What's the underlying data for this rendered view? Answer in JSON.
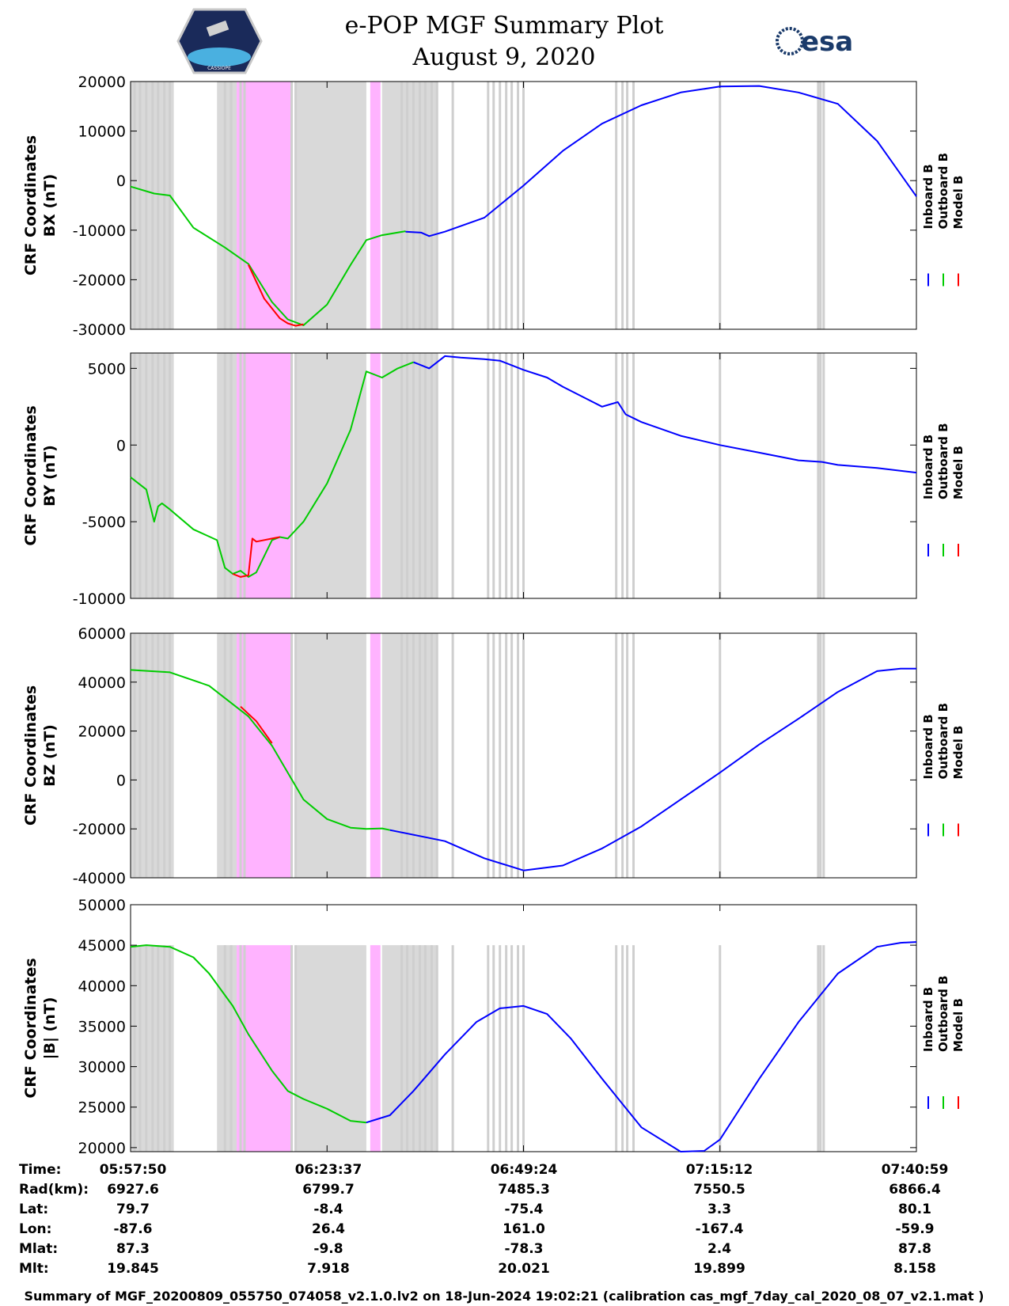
{
  "header": {
    "title": "e-POP MGF Summary Plot",
    "date": "August 9, 2020",
    "left_logo_caption": "CASSIOPE",
    "right_logo_text": "esa"
  },
  "colors": {
    "inboard": "#0000ff",
    "outboard": "#00cc00",
    "model": "#ff0000",
    "gap_shade": "#d9d9d9",
    "magenta_shade": "#ffb3ff"
  },
  "legend": [
    "Inboard B",
    "Outboard B",
    "Model B"
  ],
  "chart_data": [
    {
      "type": "line",
      "ylabel": [
        "CRF Coordinates",
        "BX (nT)"
      ],
      "ylim": [
        -30000,
        20000
      ],
      "yticks": [
        20000,
        10000,
        0,
        -10000,
        -20000,
        -30000
      ],
      "ytick_labels": [
        "20000",
        "10000",
        "0",
        "-10000",
        "-20000",
        "-30000"
      ],
      "series": [
        {
          "name": "Outboard B",
          "x": [
            0,
            0.03,
            0.05,
            0.08,
            0.12,
            0.15,
            0.18,
            0.2,
            0.22,
            0.25,
            0.28,
            0.3,
            0.32,
            0.35
          ],
          "y": [
            -1200,
            -2600,
            -3000,
            -9500,
            -13500,
            -16800,
            -24500,
            -28000,
            -29200,
            -25000,
            -17000,
            -12000,
            -11000,
            -10200
          ]
        },
        {
          "name": "Model B",
          "x": [
            0.15,
            0.17,
            0.19,
            0.2,
            0.21,
            0.22
          ],
          "y": [
            -17000,
            -23800,
            -27800,
            -28800,
            -29300,
            -29000
          ]
        },
        {
          "name": "Inboard B",
          "x": [
            0.35,
            0.37,
            0.38,
            0.4,
            0.45,
            0.5,
            0.55,
            0.6,
            0.65,
            0.7,
            0.75,
            0.8,
            0.85,
            0.9,
            0.95,
            1.0
          ],
          "y": [
            -10300,
            -10500,
            -11200,
            -10300,
            -7500,
            -1000,
            6000,
            11500,
            15200,
            17800,
            19000,
            19100,
            17800,
            15500,
            8000,
            -3200
          ]
        }
      ]
    },
    {
      "type": "line",
      "ylabel": [
        "CRF Coordinates",
        "BY (nT)"
      ],
      "ylim": [
        -10000,
        6000
      ],
      "yticks": [
        5000,
        0,
        -5000,
        -10000
      ],
      "ytick_labels": [
        "5000",
        "0",
        "-5000",
        "-10000"
      ],
      "series": [
        {
          "name": "Outboard B",
          "x": [
            0,
            0.02,
            0.03,
            0.035,
            0.04,
            0.05,
            0.08,
            0.11,
            0.12,
            0.13,
            0.14,
            0.15,
            0.16,
            0.18,
            0.19,
            0.2,
            0.22,
            0.25,
            0.28,
            0.3,
            0.32,
            0.34,
            0.36
          ],
          "y": [
            -2100,
            -2900,
            -5000,
            -4000,
            -3800,
            -4200,
            -5500,
            -6200,
            -8000,
            -8400,
            -8200,
            -8600,
            -8300,
            -6200,
            -6000,
            -6100,
            -5000,
            -2500,
            1000,
            4800,
            4400,
            5000,
            5400
          ]
        },
        {
          "name": "Model B",
          "x": [
            0.13,
            0.14,
            0.15,
            0.155,
            0.16,
            0.18,
            0.19
          ],
          "y": [
            -8400,
            -8600,
            -8500,
            -6100,
            -6300,
            -6100,
            -6000
          ]
        },
        {
          "name": "Inboard B",
          "x": [
            0.36,
            0.38,
            0.4,
            0.42,
            0.45,
            0.47,
            0.5,
            0.53,
            0.55,
            0.6,
            0.62,
            0.63,
            0.65,
            0.7,
            0.75,
            0.8,
            0.85,
            0.88,
            0.9,
            0.95,
            1.0
          ],
          "y": [
            5400,
            5000,
            5800,
            5700,
            5600,
            5500,
            4900,
            4400,
            3800,
            2500,
            2800,
            2000,
            1500,
            600,
            0,
            -500,
            -1000,
            -1100,
            -1300,
            -1500,
            -1800
          ]
        }
      ]
    },
    {
      "type": "line",
      "ylabel": [
        "CRF Coordinates",
        "BZ (nT)"
      ],
      "ylim": [
        -40000,
        60000
      ],
      "yticks": [
        60000,
        40000,
        20000,
        0,
        -20000,
        -40000
      ],
      "ytick_labels": [
        "60000",
        "40000",
        "20000",
        "0",
        "-20000",
        "-40000"
      ],
      "series": [
        {
          "name": "Outboard B",
          "x": [
            0,
            0.05,
            0.1,
            0.15,
            0.18,
            0.2,
            0.22,
            0.25,
            0.28,
            0.3,
            0.32,
            0.33
          ],
          "y": [
            45000,
            44000,
            38500,
            26000,
            14000,
            3000,
            -8000,
            -16000,
            -19500,
            -20000,
            -19800,
            -20500
          ]
        },
        {
          "name": "Model B",
          "x": [
            0.14,
            0.16,
            0.18
          ],
          "y": [
            30000,
            24000,
            15000
          ]
        },
        {
          "name": "Inboard B",
          "x": [
            0.33,
            0.4,
            0.45,
            0.5,
            0.55,
            0.6,
            0.65,
            0.7,
            0.75,
            0.8,
            0.85,
            0.9,
            0.95,
            0.98,
            1.0
          ],
          "y": [
            -20500,
            -25000,
            -32000,
            -37000,
            -35000,
            -28000,
            -19000,
            -8000,
            3000,
            14500,
            25000,
            36000,
            44500,
            45500,
            45500
          ]
        }
      ]
    },
    {
      "type": "line",
      "ylabel": [
        "CRF Coordinates",
        "|B| (nT)"
      ],
      "ylim": [
        19500,
        50000
      ],
      "yticks": [
        50000,
        45000,
        40000,
        35000,
        30000,
        25000,
        20000
      ],
      "ytick_labels": [
        "50000",
        "45000",
        "40000",
        "35000",
        "30000",
        "25000",
        "20000"
      ],
      "series": [
        {
          "name": "Outboard B",
          "x": [
            0,
            0.02,
            0.05,
            0.08,
            0.1,
            0.13,
            0.15,
            0.18,
            0.2,
            0.22,
            0.25,
            0.28,
            0.3
          ],
          "y": [
            44800,
            45000,
            44800,
            43500,
            41500,
            37500,
            34000,
            29500,
            27000,
            26000,
            24800,
            23300,
            23100
          ]
        },
        {
          "name": "Inboard B",
          "x": [
            0.3,
            0.33,
            0.36,
            0.4,
            0.44,
            0.47,
            0.5,
            0.53,
            0.56,
            0.6,
            0.65,
            0.7,
            0.73,
            0.75,
            0.77,
            0.8,
            0.85,
            0.9,
            0.95,
            0.98,
            1.0
          ],
          "y": [
            23100,
            24000,
            27000,
            31500,
            35500,
            37200,
            37500,
            36500,
            33500,
            28500,
            22500,
            19500,
            19600,
            21000,
            24000,
            28500,
            35500,
            41500,
            44800,
            45300,
            45400
          ]
        }
      ]
    }
  ],
  "shading": {
    "gray_bands": [
      [
        0.0,
        0.055
      ],
      [
        0.11,
        0.135
      ],
      [
        0.21,
        0.3
      ],
      [
        0.32,
        0.39
      ]
    ],
    "magenta_bands": [
      [
        0.135,
        0.205
      ],
      [
        0.305,
        0.318
      ]
    ],
    "gray_lines": [
      0.005,
      0.012,
      0.02,
      0.028,
      0.035,
      0.043,
      0.05,
      0.12,
      0.128,
      0.14,
      0.145,
      0.205,
      0.21,
      0.345,
      0.352,
      0.36,
      0.368,
      0.375,
      0.383,
      0.39,
      0.41,
      0.455,
      0.462,
      0.47,
      0.478,
      0.485,
      0.493,
      0.5,
      0.618,
      0.626,
      0.632,
      0.64,
      0.75,
      0.875,
      0.878,
      0.882
    ]
  },
  "footer": {
    "row_labels": [
      "Time:",
      "Rad(km):",
      "Lat:",
      "Lon:",
      "Mlat:",
      "Mlt:"
    ],
    "columns": [
      [
        "05:57:50",
        "6927.6",
        "79.7",
        "-87.6",
        "87.3",
        "19.845"
      ],
      [
        "06:23:37",
        "6799.7",
        "-8.4",
        "26.4",
        "-9.8",
        "7.918"
      ],
      [
        "06:49:24",
        "7485.3",
        "-75.4",
        "161.0",
        "-78.3",
        "20.021"
      ],
      [
        "07:15:12",
        "7550.5",
        "3.3",
        "-167.4",
        "2.4",
        "19.899"
      ],
      [
        "07:40:59",
        "6866.4",
        "80.1",
        "-59.9",
        "87.8",
        "8.158"
      ]
    ],
    "caption": "Summary of MGF_20200809_055750_074058_v2.1.0.lv2 on 18-Jun-2024 19:02:21 (calibration cas_mgf_7day_cal_2020_08_07_v2.1.mat )"
  }
}
